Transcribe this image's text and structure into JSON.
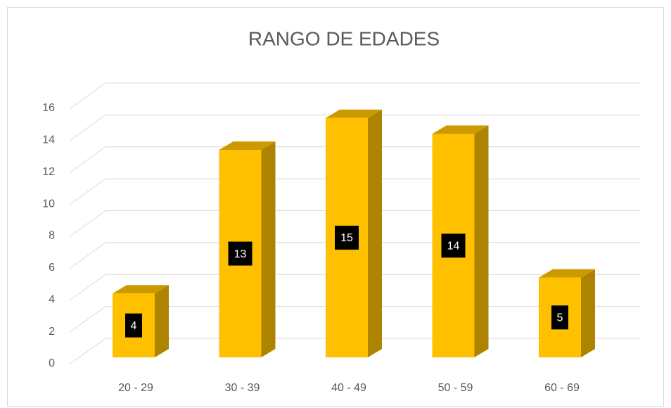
{
  "chart_data": {
    "type": "bar3d",
    "title": "RANGO DE EDADES",
    "categories": [
      "20 - 29",
      "30 - 39",
      "40 - 49",
      "50 - 59",
      "60 - 69"
    ],
    "values": [
      4,
      13,
      15,
      14,
      5
    ],
    "color": "#ffc000",
    "ylim": [
      0,
      16
    ],
    "yticks": [
      0,
      2,
      4,
      6,
      8,
      10,
      12,
      14,
      16
    ],
    "grid": true
  }
}
